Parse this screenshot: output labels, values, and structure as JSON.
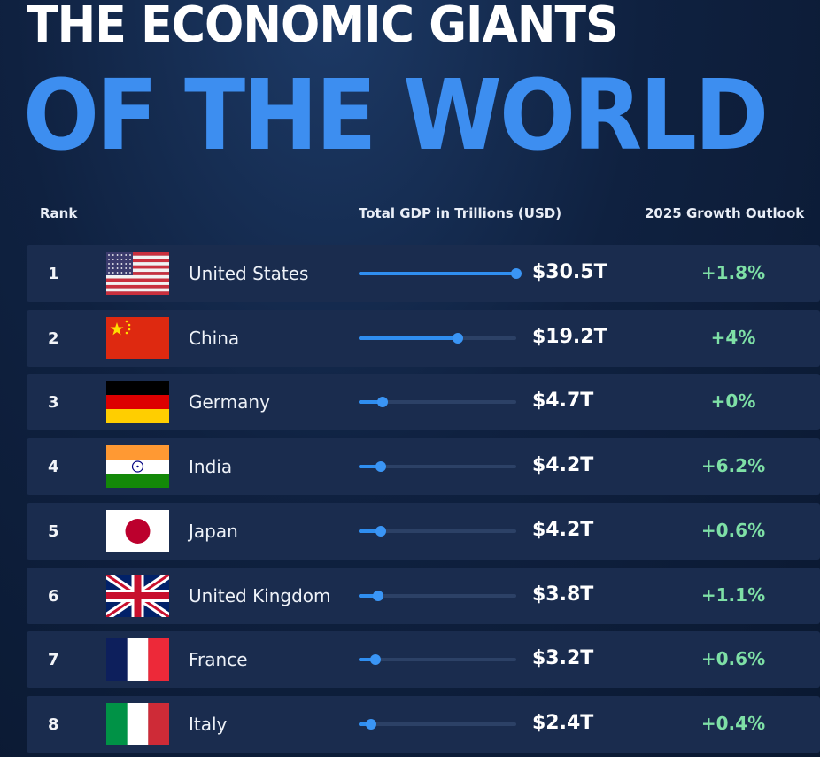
{
  "header": {
    "title_line1": "THE ECONOMIC GIANTS",
    "title_line2": "OF THE WORLD"
  },
  "columns": {
    "rank": "Rank",
    "gdp": "Total GDP in Trillions (USD)",
    "growth": "2025 Growth Outlook"
  },
  "colors": {
    "accent_blue": "#3d8ef0",
    "growth_green": "#7ee0a6",
    "row_bg": "#1a2c4e",
    "page_bg": "#0f2140"
  },
  "chart_data": {
    "type": "bar",
    "xlim": [
      0,
      30.5
    ],
    "categories": [
      "United States",
      "China",
      "Germany",
      "India",
      "Japan",
      "United Kingdom",
      "France",
      "Italy"
    ],
    "values": [
      30.5,
      19.2,
      4.7,
      4.2,
      4.2,
      3.8,
      3.2,
      2.4
    ],
    "rows": [
      {
        "rank": "1",
        "country": "United States",
        "flag": "us-flag",
        "gdp": 30.5,
        "gdp_label": "$30.5T",
        "growth": "+1.8%"
      },
      {
        "rank": "2",
        "country": "China",
        "flag": "china-flag",
        "gdp": 19.2,
        "gdp_label": "$19.2T",
        "growth": "+4%"
      },
      {
        "rank": "3",
        "country": "Germany",
        "flag": "germany-flag",
        "gdp": 4.7,
        "gdp_label": "$4.7T",
        "growth": "+0%"
      },
      {
        "rank": "4",
        "country": "India",
        "flag": "india-flag",
        "gdp": 4.2,
        "gdp_label": "$4.2T",
        "growth": "+6.2%"
      },
      {
        "rank": "5",
        "country": "Japan",
        "flag": "japan-flag",
        "gdp": 4.2,
        "gdp_label": "$4.2T",
        "growth": "+0.6%"
      },
      {
        "rank": "6",
        "country": "United Kingdom",
        "flag": "uk-flag",
        "gdp": 3.8,
        "gdp_label": "$3.8T",
        "growth": "+1.1%"
      },
      {
        "rank": "7",
        "country": "France",
        "flag": "france-flag",
        "gdp": 3.2,
        "gdp_label": "$3.2T",
        "growth": "+0.6%"
      },
      {
        "rank": "8",
        "country": "Italy",
        "flag": "italy-flag",
        "gdp": 2.4,
        "gdp_label": "$2.4T",
        "growth": "+0.4%"
      }
    ]
  }
}
